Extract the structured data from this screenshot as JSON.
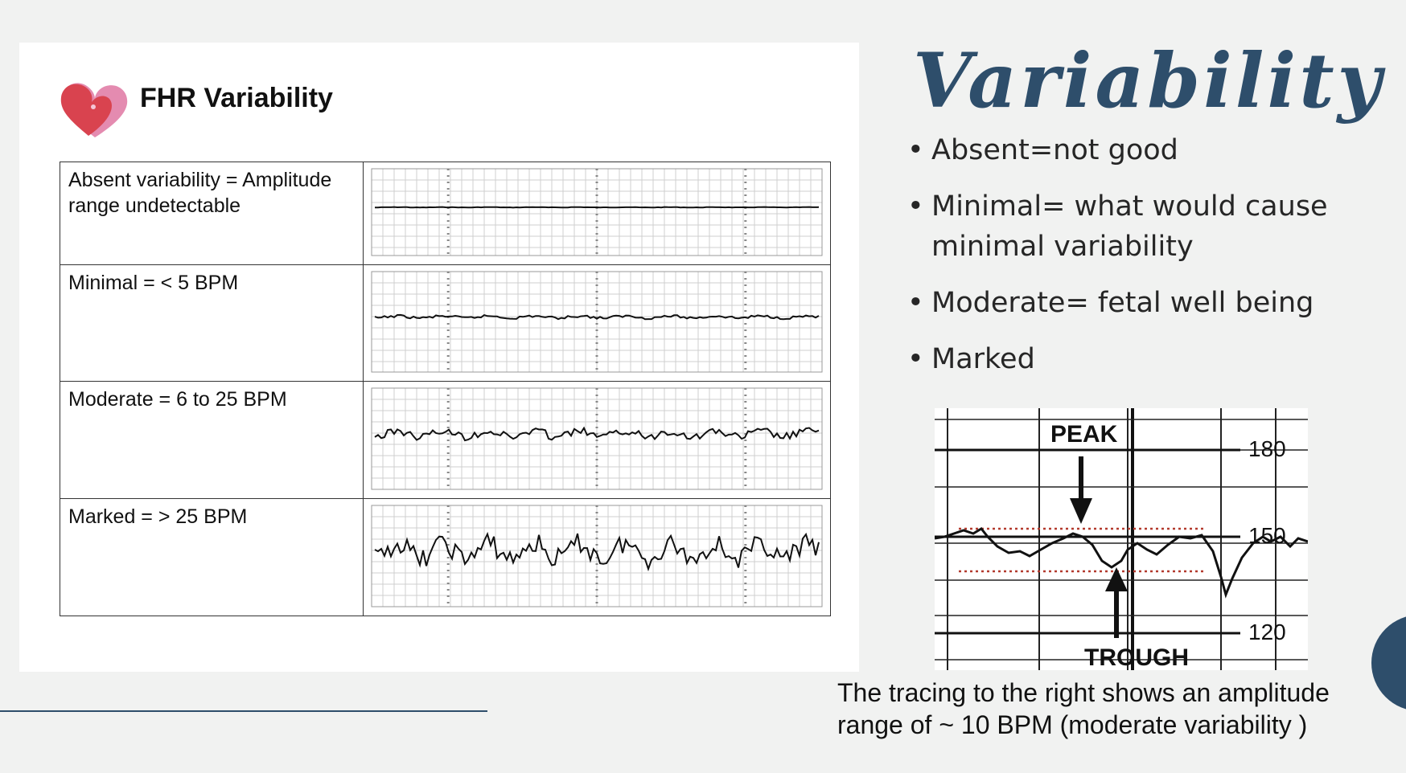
{
  "slide": {
    "title": "Variability",
    "bullets": [
      "Absent=not good",
      "Minimal= what would cause minimal variability",
      "Moderate= fetal well being",
      "Marked"
    ],
    "caption": "The tracing to the right shows an amplitude range of ~ 10 BPM (moderate variability )"
  },
  "panel": {
    "title": "FHR Variability",
    "rows": [
      {
        "label": "Absent variability = Amplitude range undetectable",
        "variability": "absent"
      },
      {
        "label": "Minimal = < 5 BPM",
        "variability": "minimal"
      },
      {
        "label": "Moderate = 6 to 25 BPM",
        "variability": "moderate"
      },
      {
        "label": "Marked = > 25 BPM",
        "variability": "marked"
      }
    ]
  },
  "tracing": {
    "peak_label": "PEAK",
    "trough_label": "TROUGH",
    "axis_labels": [
      "180",
      "150",
      "120"
    ]
  },
  "colors": {
    "accent": "#2e4e6b",
    "heart_red": "#d9434f",
    "heart_pink": "#e48bb0",
    "dotted_lines": "#b33a2e"
  }
}
